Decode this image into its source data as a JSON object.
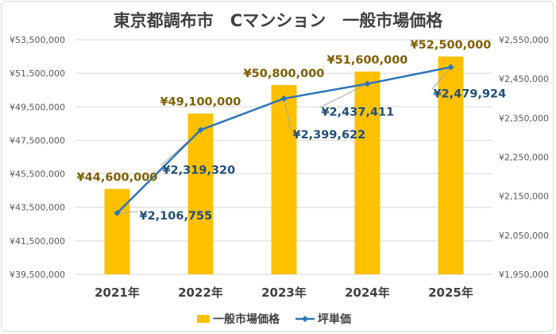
{
  "chart_data": {
    "type": "bar+line",
    "title": "東京都調布市　Cマンション　一般市場価格",
    "categories": [
      "2021年",
      "2022年",
      "2023年",
      "2024年",
      "2025年"
    ],
    "series": [
      {
        "name": "一般市場価格",
        "type": "bar",
        "axis": "left",
        "values": [
          44600000,
          49100000,
          50800000,
          51600000,
          52500000
        ],
        "labels": [
          "¥44,600,000",
          "¥49,100,000",
          "¥50,800,000",
          "¥51,600,000",
          "¥52,500,000"
        ],
        "color": "#ffc000"
      },
      {
        "name": "坪単価",
        "type": "line",
        "axis": "right",
        "values": [
          2106755,
          2319320,
          2399622,
          2437411,
          2479924
        ],
        "labels": [
          "¥2,106,755",
          "¥2,319,320",
          "¥2,399,622",
          "¥2,437,411",
          "¥2,479,924"
        ],
        "color": "#2e75b6"
      }
    ],
    "left_axis": {
      "min": 39500000,
      "max": 53500000,
      "step": 2000000,
      "ticks": [
        "¥39,500,000",
        "¥41,500,000",
        "¥43,500,000",
        "¥45,500,000",
        "¥47,500,000",
        "¥49,500,000",
        "¥51,500,000",
        "¥53,500,000"
      ]
    },
    "right_axis": {
      "min": 1950000,
      "max": 2550000,
      "step": 100000,
      "ticks": [
        "¥1,950,000",
        "¥2,050,000",
        "¥2,150,000",
        "¥2,250,000",
        "¥2,350,000",
        "¥2,450,000",
        "¥2,550,000"
      ]
    },
    "grid": true,
    "legend_position": "bottom"
  }
}
